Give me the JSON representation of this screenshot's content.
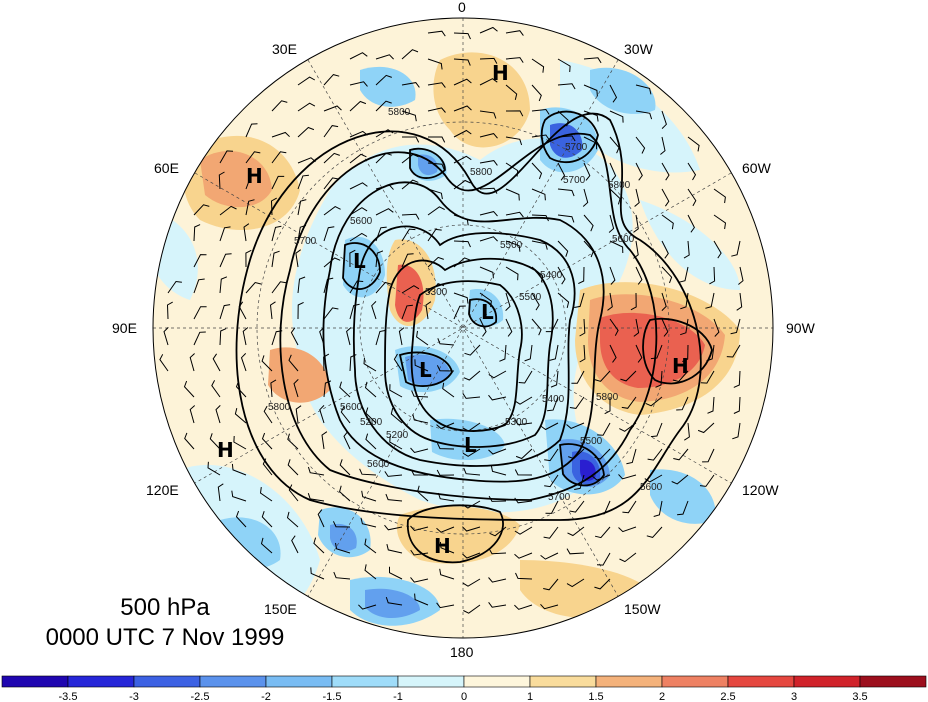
{
  "map": {
    "level": "500 hPa",
    "time": "0000 UTC 7 Nov 1999",
    "longitude_labels": [
      {
        "text": "0"
      },
      {
        "text": "30W"
      },
      {
        "text": "60W"
      },
      {
        "text": "90W"
      },
      {
        "text": "120W"
      },
      {
        "text": "150W"
      },
      {
        "text": "180"
      },
      {
        "text": "150E"
      },
      {
        "text": "120E"
      },
      {
        "text": "90E"
      },
      {
        "text": "60E"
      },
      {
        "text": "30E"
      }
    ],
    "pressure_centers": [
      "H",
      "H",
      "L",
      "L",
      "L",
      "H",
      "L",
      "H",
      "H"
    ],
    "contour_labels": [
      "5800",
      "5700",
      "5600",
      "5500",
      "5400",
      "5300",
      "5200",
      "5600",
      "5700",
      "5500",
      "5800",
      "5600",
      "5400",
      "5300",
      "5800",
      "5700",
      "5600",
      "5200",
      "5500",
      "5600",
      "5700",
      "5800",
      "5800"
    ],
    "anomaly_colors": {
      "neg4": "#2a1fd0",
      "neg3": "#3a63e0",
      "neg2": "#62a0ee",
      "neg1": "#8fd3f7",
      "near_zero_neg": "#d6f4fb",
      "near_zero_pos": "#fdf3d8",
      "pos1": "#f8d48e",
      "pos2": "#f2a773",
      "pos3": "#ea6150",
      "pos4": "#d82a2f"
    }
  },
  "colorbar": {
    "ticks": [
      "-3.5",
      "-3",
      "-2.5",
      "-2",
      "-1.5",
      "-1",
      "0",
      "1",
      "1.5",
      "2",
      "2.5",
      "3",
      "3.5"
    ],
    "colors": [
      "#1f06b0",
      "#2626d8",
      "#3c61e3",
      "#5b92ec",
      "#79bcf3",
      "#9fdcf9",
      "#d6f5fb",
      "#fef6dc",
      "#f9dc9c",
      "#f4b27b",
      "#ee8163",
      "#e5473f",
      "#d0222a",
      "#9c0f1d"
    ]
  }
}
